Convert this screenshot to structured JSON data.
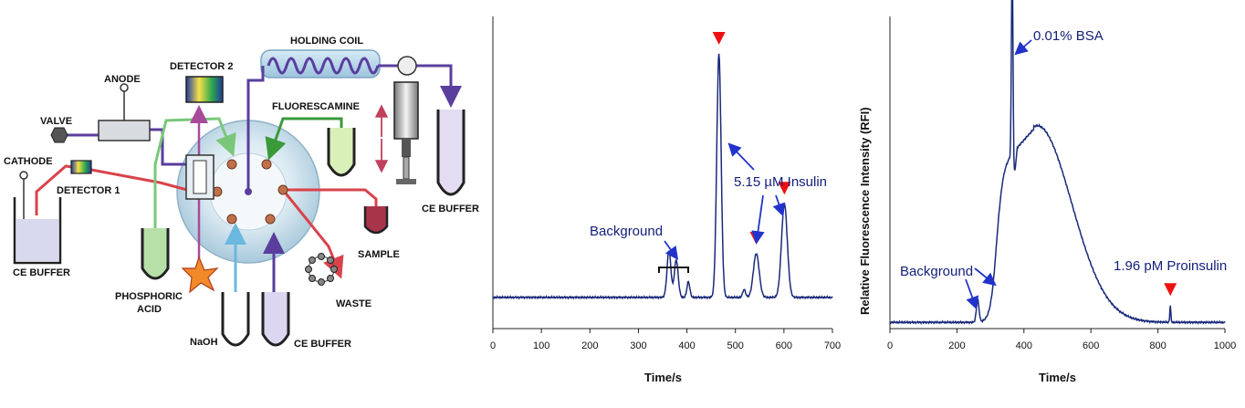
{
  "schematic": {
    "labels": {
      "holding_coil": "HOLDING COIL",
      "detector_2": "DETECTOR 2",
      "anode": "ANODE",
      "valve": "VALVE",
      "fluorescamine": "FLUORESCAMINE",
      "cathode": "CATHODE",
      "detector_1": "DETECTOR 1",
      "ce_buffer_left": "CE BUFFER",
      "ce_buffer_right": "CE BUFFER",
      "ce_buffer_bottom": "CE BUFFER",
      "sample": "SAMPLE",
      "waste": "WASTE",
      "phosphoric_line1": "PHOSPHORIC",
      "phosphoric_line2": "ACID",
      "naoh": "NaOH"
    },
    "colors": {
      "capillary": "#5a3e9e",
      "sample_line": "#d9434b",
      "green_line": "#7ac77a",
      "naoh_line": "#6ab8e0",
      "detector2_line": "#a84a9a",
      "valve_body": "#cfe3ee"
    }
  },
  "chart_data": [
    {
      "type": "line",
      "xlabel": "Time/s",
      "ylabel": "",
      "xlim": [
        0,
        700
      ],
      "xticks": [
        0,
        100,
        200,
        300,
        400,
        500,
        600,
        700
      ],
      "baseline": 0.1,
      "peaks": [
        {
          "t": 363,
          "h": 0.15,
          "w": 4
        },
        {
          "t": 378,
          "h": 0.12,
          "w": 4
        },
        {
          "t": 403,
          "h": 0.05,
          "w": 3
        },
        {
          "t": 466,
          "h": 0.78,
          "w": 4.5
        },
        {
          "t": 518,
          "h": 0.025,
          "w": 3
        },
        {
          "t": 543,
          "h": 0.14,
          "w": 6
        },
        {
          "t": 601,
          "h": 0.3,
          "w": 6
        }
      ],
      "annotations": {
        "background": "Background",
        "insulin": "5.15 µM Insulin"
      },
      "markers_t": [
        466,
        543,
        601
      ],
      "colors": {
        "line": "#1a2a7a",
        "marker": "#ee1111",
        "arrow": "#2233cc"
      }
    },
    {
      "type": "line",
      "xlabel": "Time/s",
      "ylabel": "Relative Fluorescence Intensity (RFI)",
      "xlim": [
        0,
        1000
      ],
      "xticks": [
        0,
        200,
        400,
        600,
        800,
        1000
      ],
      "baseline": 0.02,
      "peaks": [
        {
          "t": 262,
          "h": 0.07,
          "w": 4
        },
        {
          "t": 365,
          "h": 0.72,
          "w": 2.2
        },
        {
          "t": 837,
          "h": 0.055,
          "w": 1.5
        }
      ],
      "annotations": {
        "bsa": "0.01% BSA",
        "background": "Background",
        "proinsulin": "1.96 pM Proinsulin"
      },
      "markers_t": [
        837
      ],
      "colors": {
        "line": "#1a2a7a",
        "marker": "#ee1111",
        "arrow": "#2233cc"
      }
    }
  ]
}
